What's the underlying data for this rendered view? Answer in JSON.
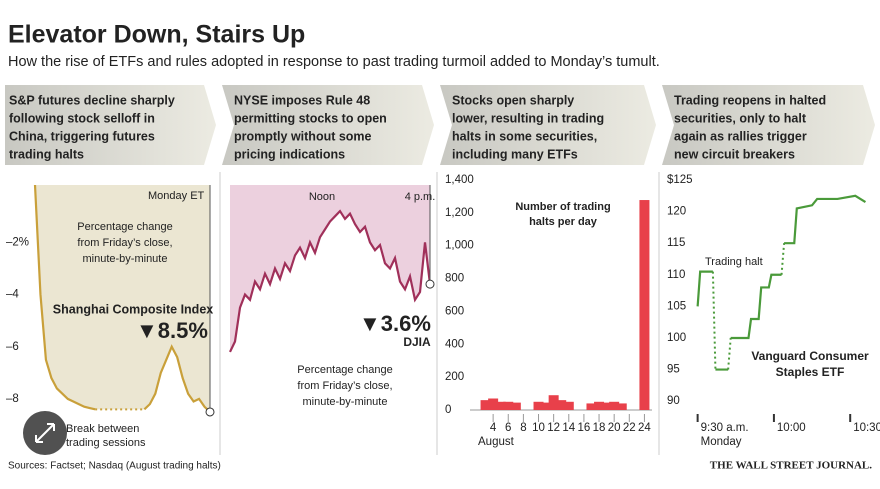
{
  "title": "Elevator Down, Stairs Up",
  "subtitle": "How the rise of ETFs and rules adopted in response to past trading turmoil added to Monday’s tumult.",
  "source": "Sources: Factset; Nasdaq (August trading halts)",
  "publisher": "THE WALL STREET JOURNAL.",
  "chart_data": [
    {
      "type": "line",
      "heading": [
        "S&P futures decline sharply",
        "following stock selloff in",
        "China, triggering futures",
        "trading halts"
      ],
      "time_label": "Monday ET",
      "note": [
        "Percentage change",
        "from Friday’s close,",
        "minute-by-minute"
      ],
      "series_label": "Shanghai Composite Index",
      "change_label": "▼8.5%",
      "break_note": [
        "Break between",
        "trading sessions"
      ],
      "color": "#c9a03a",
      "area_color": "#ebe6d2",
      "ylim": [
        -9,
        0.2
      ],
      "yticks": [
        {
          "value": -2,
          "label": "–2%"
        },
        {
          "value": -4,
          "label": "–4"
        },
        {
          "value": -6,
          "label": "–6"
        },
        {
          "value": -8,
          "label": "–8"
        }
      ],
      "values": [
        0.2,
        -4,
        -6.5,
        -7.2,
        -7.6,
        -7.8,
        -8.0,
        -8.1,
        -8.2,
        -8.3,
        -8.35,
        -8.4,
        null,
        null,
        null,
        null,
        null,
        null,
        null,
        null,
        -8.4,
        -8.2,
        -7.8,
        -7,
        -6.5,
        -6.0,
        -6.4,
        -7.2,
        -7.8,
        -8.1,
        -8.0,
        -8.3,
        -8.5
      ]
    },
    {
      "type": "line",
      "heading": [
        "NYSE imposes Rule 48",
        "permitting stocks to open",
        "promptly without some",
        "pricing indications"
      ],
      "time_labels": [
        "Noon",
        "4 p.m."
      ],
      "change_label": "▼3.6%",
      "series_label": "DJIA",
      "note": [
        "Percentage change",
        "from Friday’s close,",
        "minute-by-minute"
      ],
      "color": "#a0305a",
      "area_color": "#ecd0de",
      "ylim": [
        -9,
        0.2
      ],
      "values": [
        -6.2,
        -5.8,
        -4.5,
        -4.0,
        -4.2,
        -3.5,
        -3.8,
        -3.2,
        -3.6,
        -3.0,
        -3.4,
        -2.8,
        -3.1,
        -2.5,
        -2.2,
        -2.6,
        -2.0,
        -2.4,
        -1.8,
        -1.5,
        -1.2,
        -1.0,
        -0.8,
        -1.1,
        -0.9,
        -1.3,
        -1.6,
        -1.4,
        -2.0,
        -2.3,
        -2.1,
        -2.8,
        -3.0,
        -2.6,
        -3.5,
        -3.8,
        -3.3,
        -4.2,
        -3.9,
        -2.0,
        -3.6
      ]
    },
    {
      "type": "bar",
      "heading": [
        "Stocks open sharply",
        "lower, resulting in trading",
        "halts in some securities,",
        "including many ETFs"
      ],
      "label": [
        "Number of trading",
        "halts per day"
      ],
      "x_label": "August",
      "color": "#e8404a",
      "x": [
        3,
        4,
        5,
        6,
        7,
        10,
        11,
        12,
        13,
        14,
        17,
        18,
        19,
        20,
        21,
        24
      ],
      "values": [
        60,
        70,
        50,
        50,
        45,
        50,
        45,
        90,
        60,
        50,
        40,
        50,
        45,
        50,
        40,
        1278
      ],
      "xlim": [
        2,
        25
      ],
      "xticks": [
        4,
        6,
        8,
        10,
        12,
        14,
        16,
        18,
        20,
        22,
        24
      ],
      "ylim": [
        0,
        1400
      ],
      "yticks": [
        0,
        200,
        400,
        600,
        800,
        {
          "value": 1000,
          "label": "1,000"
        },
        {
          "value": 1200,
          "label": "1,200"
        },
        {
          "value": 1400,
          "label": "1,400"
        }
      ]
    },
    {
      "type": "line",
      "heading": [
        "Trading reopens in halted",
        "securities, only to halt",
        "again as rallies trigger",
        "new circuit breakers"
      ],
      "halt_label": "Trading halt",
      "series_label": [
        "Vanguard Consumer",
        "Staples ETF"
      ],
      "x_sublabel": "Monday",
      "color": "#4a9a3a",
      "x": [
        0,
        1,
        6,
        null,
        7,
        12,
        null,
        13,
        20,
        21,
        24,
        25,
        28,
        29,
        33,
        null,
        34,
        38,
        39,
        45,
        47,
        55,
        62,
        66
      ],
      "values": [
        105,
        110.5,
        110.5,
        null,
        95,
        95,
        null,
        100,
        100,
        103,
        103,
        108,
        108,
        110,
        110,
        null,
        115,
        115,
        120.5,
        121,
        122,
        122,
        122.5,
        121.5
      ],
      "xlim": [
        -3,
        67
      ],
      "xticks": [
        {
          "value": 0,
          "label": "9:30 a.m."
        },
        {
          "value": 30,
          "label": "10:00"
        },
        {
          "value": 60,
          "label": "10:30"
        }
      ],
      "ylim": [
        88.6,
        125
      ],
      "yticks": [
        {
          "value": 125,
          "label": "$125"
        },
        120,
        115,
        110,
        105,
        100,
        95,
        90
      ]
    }
  ]
}
